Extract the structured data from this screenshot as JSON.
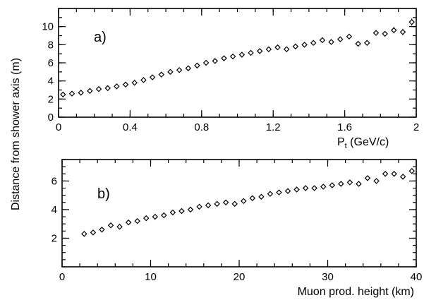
{
  "chart_data": [
    {
      "type": "scatter",
      "panel_label": "a)",
      "xlabel": "P",
      "xlabel_sub": "t",
      "xlabel_unit": "(GeV/c)",
      "xlim": [
        0,
        2
      ],
      "ylim": [
        0,
        12
      ],
      "x_ticks": [
        0,
        0.4,
        0.8,
        1.2,
        1.6,
        2
      ],
      "x_tick_labels": [
        "0",
        "0.4",
        "0.8",
        "1.2",
        "1.6",
        "2"
      ],
      "y_ticks": [
        0,
        2,
        4,
        6,
        8,
        10
      ],
      "y_tick_labels": [
        "0",
        "2",
        "4",
        "6",
        "8",
        "10"
      ],
      "series": [
        {
          "x": [
            0.025,
            0.075,
            0.125,
            0.175,
            0.225,
            0.275,
            0.325,
            0.375,
            0.425,
            0.475,
            0.525,
            0.575,
            0.625,
            0.675,
            0.725,
            0.775,
            0.825,
            0.875,
            0.925,
            0.975,
            1.025,
            1.075,
            1.125,
            1.175,
            1.225,
            1.275,
            1.325,
            1.375,
            1.425,
            1.475,
            1.525,
            1.575,
            1.625,
            1.675,
            1.725,
            1.775,
            1.825,
            1.875,
            1.925,
            1.975
          ],
          "y": [
            2.5,
            2.6,
            2.7,
            2.9,
            3.1,
            3.2,
            3.4,
            3.6,
            3.8,
            4.1,
            4.4,
            4.7,
            5.0,
            5.2,
            5.4,
            5.7,
            6.0,
            6.2,
            6.5,
            6.7,
            6.9,
            7.1,
            7.3,
            7.5,
            7.7,
            7.5,
            7.8,
            8.0,
            8.2,
            8.5,
            8.3,
            8.6,
            8.9,
            8.1,
            8.2,
            9.3,
            9.2,
            9.6,
            9.4,
            10.5
          ],
          "yerr": [
            0.1,
            0.1,
            0.1,
            0.1,
            0.1,
            0.1,
            0.1,
            0.1,
            0.1,
            0.1,
            0.1,
            0.1,
            0.1,
            0.1,
            0.1,
            0.1,
            0.1,
            0.1,
            0.1,
            0.1,
            0.15,
            0.15,
            0.15,
            0.15,
            0.15,
            0.15,
            0.15,
            0.15,
            0.2,
            0.2,
            0.2,
            0.2,
            0.2,
            0.3,
            0.3,
            0.3,
            0.3,
            0.35,
            0.35,
            0.4
          ]
        }
      ]
    },
    {
      "type": "scatter",
      "panel_label": "b)",
      "xlabel": "Muon prod. height (km)",
      "xlim": [
        0,
        40
      ],
      "ylim": [
        0,
        7.5
      ],
      "x_ticks": [
        0,
        10,
        20,
        30,
        40
      ],
      "x_tick_labels": [
        "0",
        "10",
        "20",
        "30",
        "40"
      ],
      "y_ticks": [
        2,
        4,
        6
      ],
      "y_tick_labels": [
        "2",
        "4",
        "6"
      ],
      "series": [
        {
          "x": [
            2.5,
            3.5,
            4.5,
            5.5,
            6.5,
            7.5,
            8.5,
            9.5,
            10.5,
            11.5,
            12.5,
            13.5,
            14.5,
            15.5,
            16.5,
            17.5,
            18.5,
            19.5,
            20.5,
            21.5,
            22.5,
            23.5,
            24.5,
            25.5,
            26.5,
            27.5,
            28.5,
            29.5,
            30.5,
            31.5,
            32.5,
            33.5,
            34.5,
            35.5,
            36.5,
            37.5,
            38.5,
            39.5
          ],
          "y": [
            2.3,
            2.4,
            2.6,
            2.9,
            2.8,
            3.1,
            3.2,
            3.4,
            3.5,
            3.6,
            3.8,
            3.9,
            4.0,
            4.2,
            4.3,
            4.4,
            4.5,
            4.4,
            4.6,
            4.8,
            4.9,
            5.1,
            5.2,
            5.3,
            5.4,
            5.5,
            5.5,
            5.6,
            5.7,
            5.8,
            5.9,
            5.8,
            6.2,
            6.0,
            6.5,
            6.5,
            6.3,
            6.7
          ],
          "yerr": [
            0.1,
            0.1,
            0.1,
            0.1,
            0.1,
            0.1,
            0.1,
            0.1,
            0.1,
            0.1,
            0.1,
            0.1,
            0.1,
            0.1,
            0.1,
            0.1,
            0.1,
            0.1,
            0.1,
            0.1,
            0.1,
            0.1,
            0.1,
            0.1,
            0.1,
            0.1,
            0.1,
            0.1,
            0.1,
            0.1,
            0.15,
            0.15,
            0.15,
            0.15,
            0.15,
            0.2,
            0.2,
            0.2
          ]
        }
      ]
    }
  ],
  "shared_ylabel": "Distance from shower axis (m)"
}
